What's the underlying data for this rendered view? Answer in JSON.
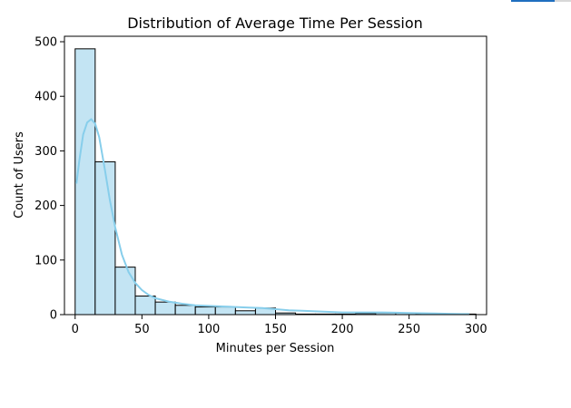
{
  "colors": {
    "bar_fill": "#c3e4f3",
    "bar_edge": "#000000",
    "kde_line": "#87ceeb",
    "top_strip_blue": "#1f6fbf",
    "top_strip_gray": "#d8d8d8"
  },
  "chart_data": {
    "type": "bar",
    "title": "Distribution of Average Time Per Session",
    "xlabel": "Minutes per Session",
    "ylabel": "Count of Users",
    "xlim": [
      -8,
      308
    ],
    "ylim": [
      0,
      510
    ],
    "xticks": [
      0,
      50,
      100,
      150,
      200,
      250,
      300
    ],
    "yticks": [
      0,
      100,
      200,
      300,
      400,
      500
    ],
    "grid": false,
    "bins": [
      {
        "start": 0,
        "end": 15,
        "count": 487
      },
      {
        "start": 15,
        "end": 30,
        "count": 280
      },
      {
        "start": 30,
        "end": 45,
        "count": 87
      },
      {
        "start": 45,
        "end": 60,
        "count": 34
      },
      {
        "start": 60,
        "end": 75,
        "count": 23
      },
      {
        "start": 75,
        "end": 90,
        "count": 17
      },
      {
        "start": 90,
        "end": 105,
        "count": 14
      },
      {
        "start": 105,
        "end": 120,
        "count": 14
      },
      {
        "start": 120,
        "end": 135,
        "count": 7
      },
      {
        "start": 135,
        "end": 150,
        "count": 12
      },
      {
        "start": 150,
        "end": 165,
        "count": 3
      },
      {
        "start": 165,
        "end": 180,
        "count": 1
      },
      {
        "start": 180,
        "end": 195,
        "count": 1
      },
      {
        "start": 195,
        "end": 210,
        "count": 1
      },
      {
        "start": 210,
        "end": 225,
        "count": 2
      },
      {
        "start": 225,
        "end": 240,
        "count": 3
      },
      {
        "start": 240,
        "end": 255,
        "count": 3
      },
      {
        "start": 255,
        "end": 270,
        "count": 1
      },
      {
        "start": 270,
        "end": 285,
        "count": 0
      },
      {
        "start": 285,
        "end": 300,
        "count": 1
      }
    ],
    "kde_curve": {
      "x": [
        1,
        3,
        6,
        9,
        12,
        15,
        18,
        22,
        26,
        30,
        35,
        40,
        45,
        50,
        55,
        60,
        70,
        80,
        90,
        100,
        110,
        120,
        130,
        140,
        150,
        160,
        170,
        180,
        190,
        200,
        210,
        220,
        230,
        240,
        250,
        260,
        270,
        280,
        290,
        295
      ],
      "y": [
        240,
        280,
        330,
        352,
        358,
        350,
        325,
        270,
        210,
        160,
        110,
        78,
        58,
        45,
        36,
        30,
        24,
        20,
        17,
        16,
        15,
        14,
        13,
        12,
        10,
        8,
        7,
        6,
        5,
        4,
        4,
        4,
        4,
        3.5,
        3,
        2.5,
        2,
        1.5,
        1,
        1
      ]
    }
  }
}
